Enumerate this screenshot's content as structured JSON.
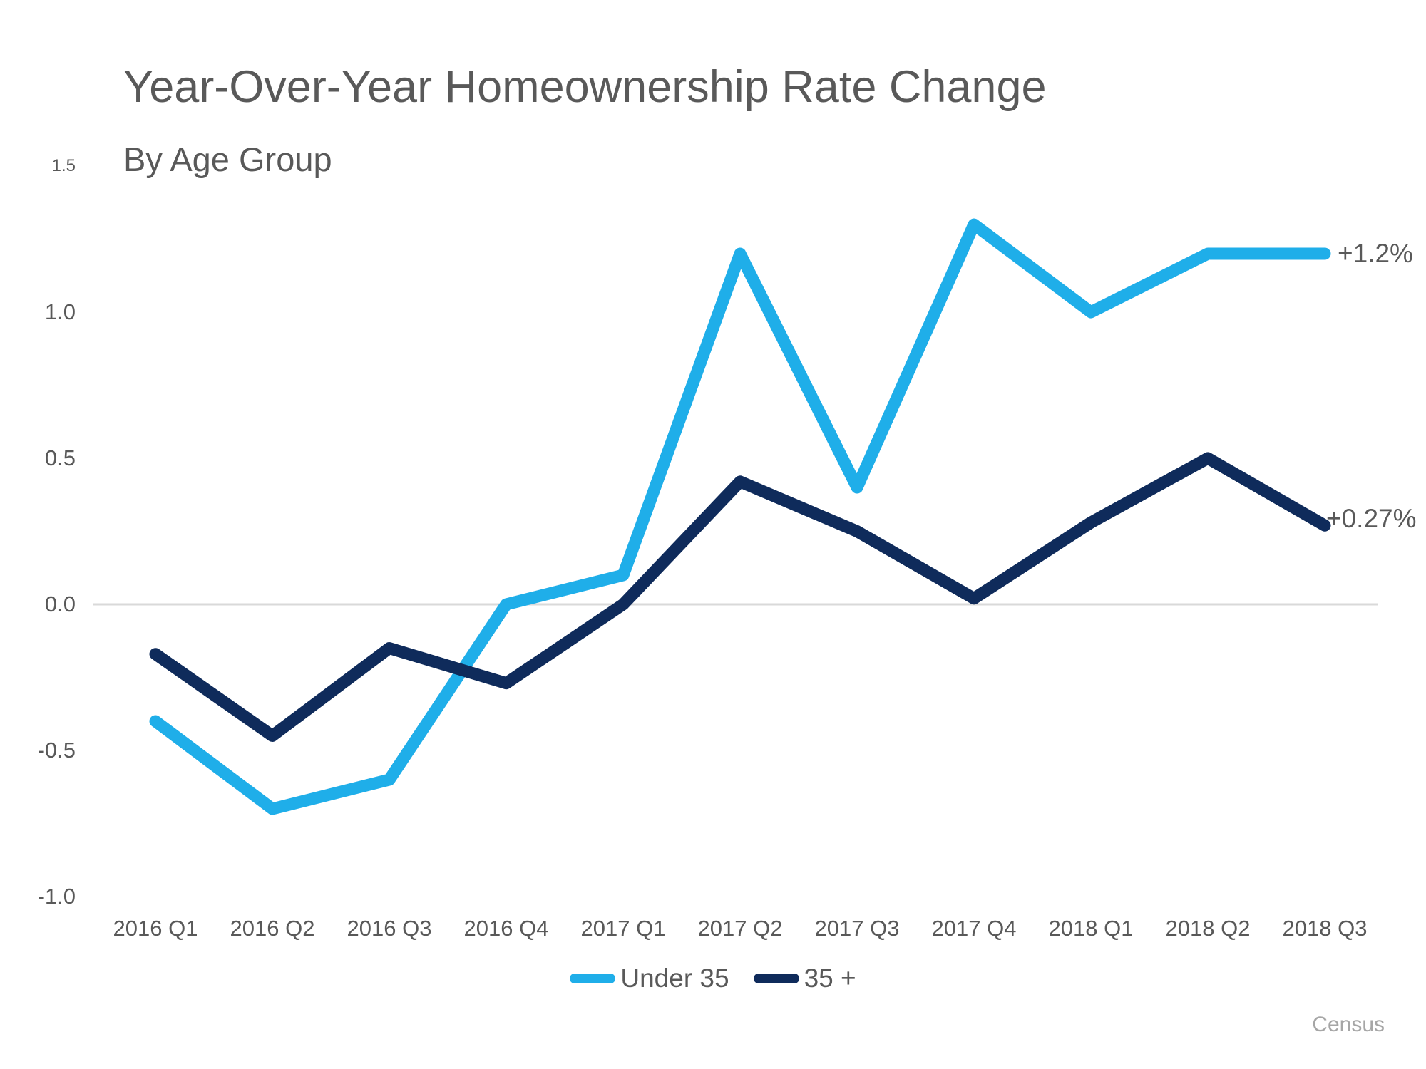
{
  "title": "Year-Over-Year Homeownership Rate Change",
  "subtitle": "By Age Group",
  "source": "Census",
  "colors": {
    "under_35": "#1faee9",
    "over_35": "#0f2b5b",
    "gridline": "#d9d9d9",
    "text_gray": "#595959",
    "source_gray": "#a6a6a6"
  },
  "chart_data": {
    "type": "line",
    "title": "Year-Over-Year Homeownership Rate Change",
    "subtitle": "By Age Group",
    "categories": [
      "2016 Q1",
      "2016 Q2",
      "2016 Q3",
      "2016 Q4",
      "2017 Q1",
      "2017 Q2",
      "2017 Q3",
      "2017 Q4",
      "2018 Q1",
      "2018 Q2",
      "2018 Q3"
    ],
    "series": [
      {
        "name": "Under 35",
        "color": "#1faee9",
        "values": [
          -0.4,
          -0.7,
          -0.6,
          0.0,
          0.1,
          1.2,
          0.4,
          1.3,
          1.0,
          1.2,
          1.2
        ],
        "end_label": "+1.2%"
      },
      {
        "name": "35 +",
        "color": "#0f2b5b",
        "values": [
          -0.17,
          -0.45,
          -0.15,
          -0.27,
          0.0,
          0.42,
          0.25,
          0.02,
          0.28,
          0.5,
          0.27
        ],
        "end_label": "+0.27%"
      }
    ],
    "y_ticks": [
      1.5,
      1.0,
      0.5,
      0.0,
      -0.5,
      -1.0
    ],
    "y_tick_labels": [
      "1.5",
      "1.0",
      "0.5",
      "0.0",
      "-0.5",
      "-1.0"
    ],
    "ylim": [
      -1.0,
      1.5
    ],
    "grid": "zero-line-only",
    "legend_position": "bottom-center"
  }
}
